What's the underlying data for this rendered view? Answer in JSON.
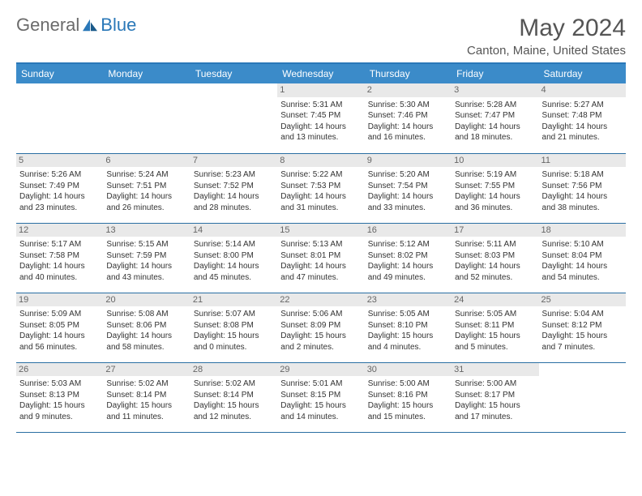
{
  "logo": {
    "text1": "General",
    "text2": "Blue"
  },
  "title": "May 2024",
  "location": "Canton, Maine, United States",
  "header_bg": "#3b8bc9",
  "border_color": "#2a6fa3",
  "daynum_bg": "#e9e9e9",
  "background_color": "#ffffff",
  "day_names": [
    "Sunday",
    "Monday",
    "Tuesday",
    "Wednesday",
    "Thursday",
    "Friday",
    "Saturday"
  ],
  "weeks": [
    [
      null,
      null,
      null,
      {
        "n": "1",
        "sr": "Sunrise: 5:31 AM",
        "ss": "Sunset: 7:45 PM",
        "dl": "Daylight: 14 hours and 13 minutes."
      },
      {
        "n": "2",
        "sr": "Sunrise: 5:30 AM",
        "ss": "Sunset: 7:46 PM",
        "dl": "Daylight: 14 hours and 16 minutes."
      },
      {
        "n": "3",
        "sr": "Sunrise: 5:28 AM",
        "ss": "Sunset: 7:47 PM",
        "dl": "Daylight: 14 hours and 18 minutes."
      },
      {
        "n": "4",
        "sr": "Sunrise: 5:27 AM",
        "ss": "Sunset: 7:48 PM",
        "dl": "Daylight: 14 hours and 21 minutes."
      }
    ],
    [
      {
        "n": "5",
        "sr": "Sunrise: 5:26 AM",
        "ss": "Sunset: 7:49 PM",
        "dl": "Daylight: 14 hours and 23 minutes."
      },
      {
        "n": "6",
        "sr": "Sunrise: 5:24 AM",
        "ss": "Sunset: 7:51 PM",
        "dl": "Daylight: 14 hours and 26 minutes."
      },
      {
        "n": "7",
        "sr": "Sunrise: 5:23 AM",
        "ss": "Sunset: 7:52 PM",
        "dl": "Daylight: 14 hours and 28 minutes."
      },
      {
        "n": "8",
        "sr": "Sunrise: 5:22 AM",
        "ss": "Sunset: 7:53 PM",
        "dl": "Daylight: 14 hours and 31 minutes."
      },
      {
        "n": "9",
        "sr": "Sunrise: 5:20 AM",
        "ss": "Sunset: 7:54 PM",
        "dl": "Daylight: 14 hours and 33 minutes."
      },
      {
        "n": "10",
        "sr": "Sunrise: 5:19 AM",
        "ss": "Sunset: 7:55 PM",
        "dl": "Daylight: 14 hours and 36 minutes."
      },
      {
        "n": "11",
        "sr": "Sunrise: 5:18 AM",
        "ss": "Sunset: 7:56 PM",
        "dl": "Daylight: 14 hours and 38 minutes."
      }
    ],
    [
      {
        "n": "12",
        "sr": "Sunrise: 5:17 AM",
        "ss": "Sunset: 7:58 PM",
        "dl": "Daylight: 14 hours and 40 minutes."
      },
      {
        "n": "13",
        "sr": "Sunrise: 5:15 AM",
        "ss": "Sunset: 7:59 PM",
        "dl": "Daylight: 14 hours and 43 minutes."
      },
      {
        "n": "14",
        "sr": "Sunrise: 5:14 AM",
        "ss": "Sunset: 8:00 PM",
        "dl": "Daylight: 14 hours and 45 minutes."
      },
      {
        "n": "15",
        "sr": "Sunrise: 5:13 AM",
        "ss": "Sunset: 8:01 PM",
        "dl": "Daylight: 14 hours and 47 minutes."
      },
      {
        "n": "16",
        "sr": "Sunrise: 5:12 AM",
        "ss": "Sunset: 8:02 PM",
        "dl": "Daylight: 14 hours and 49 minutes."
      },
      {
        "n": "17",
        "sr": "Sunrise: 5:11 AM",
        "ss": "Sunset: 8:03 PM",
        "dl": "Daylight: 14 hours and 52 minutes."
      },
      {
        "n": "18",
        "sr": "Sunrise: 5:10 AM",
        "ss": "Sunset: 8:04 PM",
        "dl": "Daylight: 14 hours and 54 minutes."
      }
    ],
    [
      {
        "n": "19",
        "sr": "Sunrise: 5:09 AM",
        "ss": "Sunset: 8:05 PM",
        "dl": "Daylight: 14 hours and 56 minutes."
      },
      {
        "n": "20",
        "sr": "Sunrise: 5:08 AM",
        "ss": "Sunset: 8:06 PM",
        "dl": "Daylight: 14 hours and 58 minutes."
      },
      {
        "n": "21",
        "sr": "Sunrise: 5:07 AM",
        "ss": "Sunset: 8:08 PM",
        "dl": "Daylight: 15 hours and 0 minutes."
      },
      {
        "n": "22",
        "sr": "Sunrise: 5:06 AM",
        "ss": "Sunset: 8:09 PM",
        "dl": "Daylight: 15 hours and 2 minutes."
      },
      {
        "n": "23",
        "sr": "Sunrise: 5:05 AM",
        "ss": "Sunset: 8:10 PM",
        "dl": "Daylight: 15 hours and 4 minutes."
      },
      {
        "n": "24",
        "sr": "Sunrise: 5:05 AM",
        "ss": "Sunset: 8:11 PM",
        "dl": "Daylight: 15 hours and 5 minutes."
      },
      {
        "n": "25",
        "sr": "Sunrise: 5:04 AM",
        "ss": "Sunset: 8:12 PM",
        "dl": "Daylight: 15 hours and 7 minutes."
      }
    ],
    [
      {
        "n": "26",
        "sr": "Sunrise: 5:03 AM",
        "ss": "Sunset: 8:13 PM",
        "dl": "Daylight: 15 hours and 9 minutes."
      },
      {
        "n": "27",
        "sr": "Sunrise: 5:02 AM",
        "ss": "Sunset: 8:14 PM",
        "dl": "Daylight: 15 hours and 11 minutes."
      },
      {
        "n": "28",
        "sr": "Sunrise: 5:02 AM",
        "ss": "Sunset: 8:14 PM",
        "dl": "Daylight: 15 hours and 12 minutes."
      },
      {
        "n": "29",
        "sr": "Sunrise: 5:01 AM",
        "ss": "Sunset: 8:15 PM",
        "dl": "Daylight: 15 hours and 14 minutes."
      },
      {
        "n": "30",
        "sr": "Sunrise: 5:00 AM",
        "ss": "Sunset: 8:16 PM",
        "dl": "Daylight: 15 hours and 15 minutes."
      },
      {
        "n": "31",
        "sr": "Sunrise: 5:00 AM",
        "ss": "Sunset: 8:17 PM",
        "dl": "Daylight: 15 hours and 17 minutes."
      },
      null
    ]
  ]
}
